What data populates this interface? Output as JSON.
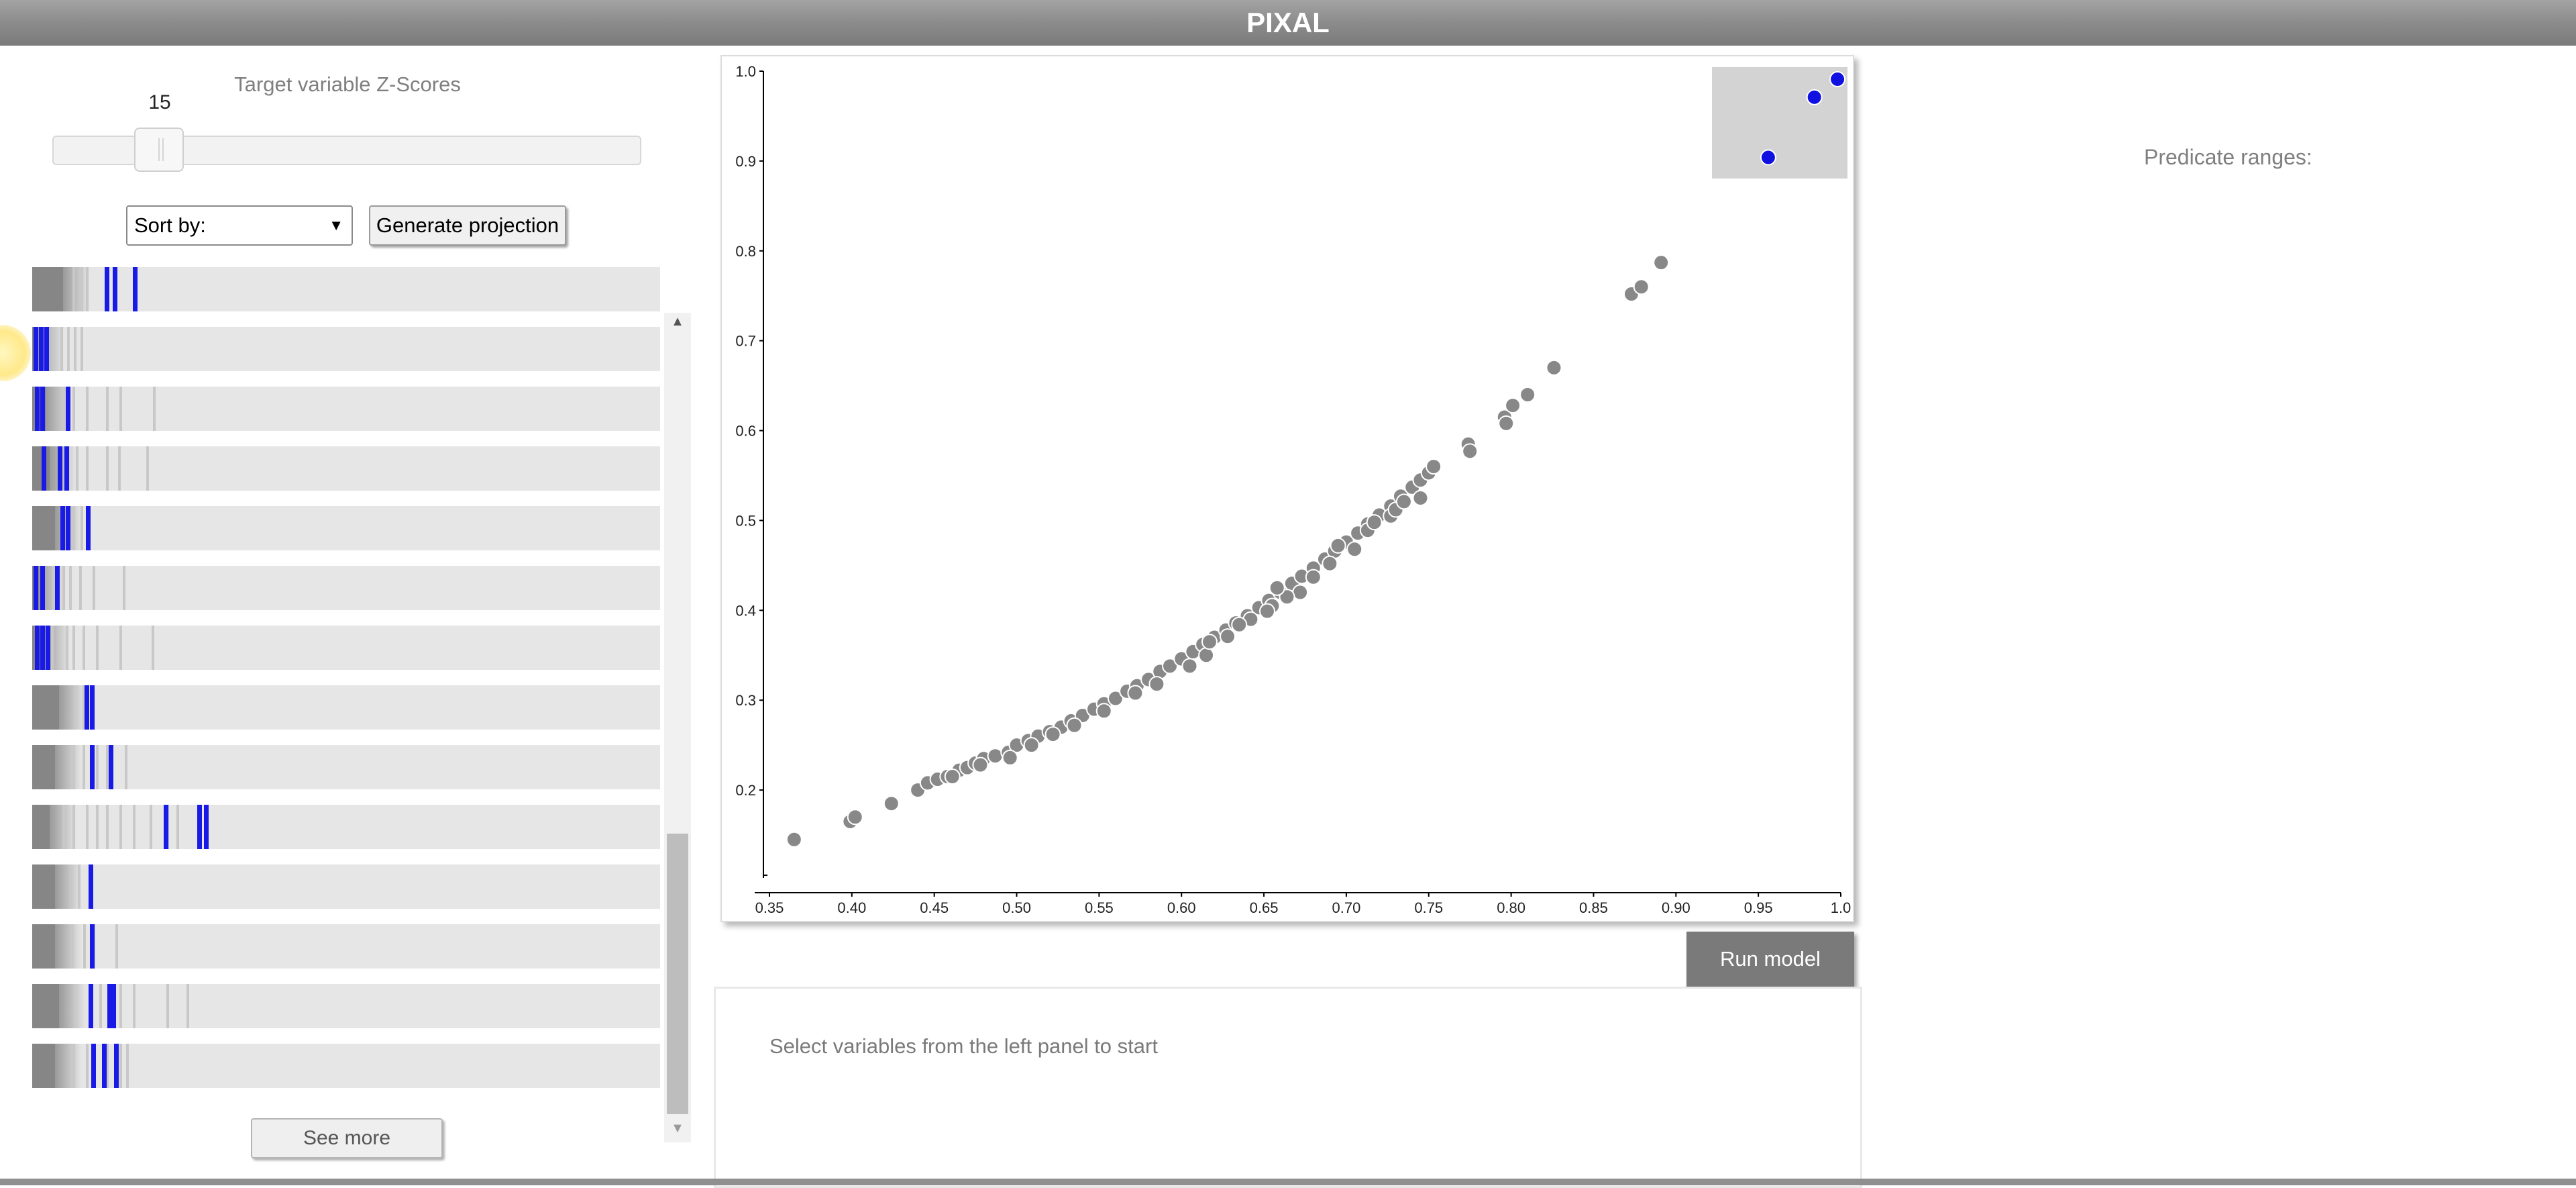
{
  "app": {
    "title": "PIXAL"
  },
  "left_panel": {
    "zscore_title": "Target variable Z-Scores",
    "slider_value": "15",
    "sort_label": "Sort by:",
    "generate_button": "Generate projection",
    "see_more_button": "See more",
    "variables": [
      {
        "gray_end": 46,
        "ticks": [
          60,
          72,
          80
        ],
        "blue": [
          108,
          120,
          150
        ]
      },
      {
        "gray_end": 8,
        "ticks": [
          30,
          42,
          52,
          62,
          72
        ],
        "blue": [
          2,
          10,
          18
        ]
      },
      {
        "gray_end": 20,
        "ticks": [
          45,
          60,
          80,
          110,
          130,
          180
        ],
        "blue": [
          4,
          12,
          50
        ]
      },
      {
        "gray_end": 26,
        "ticks": [
          50,
          65,
          80,
          110,
          128,
          170
        ],
        "blue": [
          14,
          38,
          48
        ]
      },
      {
        "gray_end": 34,
        "ticks": [
          60,
          72,
          82
        ],
        "blue": [
          42,
          50,
          80
        ]
      },
      {
        "gray_end": 10,
        "ticks": [
          30,
          45,
          55,
          70,
          90,
          135
        ],
        "blue": [
          2,
          12,
          34
        ]
      },
      {
        "gray_end": 16,
        "ticks": [
          28,
          50,
          60,
          75,
          95,
          130,
          178
        ],
        "blue": [
          4,
          12,
          20
        ]
      },
      {
        "gray_end": 40,
        "ticks": [
          62,
          75
        ],
        "blue": [
          78,
          86
        ]
      },
      {
        "gray_end": 34,
        "ticks": [
          60,
          75,
          95,
          110,
          138
        ],
        "blue": [
          86,
          114
        ]
      },
      {
        "gray_end": 26,
        "ticks": [
          45,
          60,
          80,
          95,
          110,
          130,
          150,
          175,
          200,
          215
        ],
        "blue": [
          196,
          246,
          256
        ]
      },
      {
        "gray_end": 34,
        "ticks": [
          56,
          68
        ],
        "blue": [
          84
        ]
      },
      {
        "gray_end": 34,
        "ticks": [
          58,
          76,
          90,
          124
        ],
        "blue": [
          86
        ]
      },
      {
        "gray_end": 40,
        "ticks": [
          62,
          100,
          130,
          150,
          200,
          230
        ],
        "blue": [
          84,
          112,
          118
        ]
      },
      {
        "gray_end": 34,
        "ticks": [
          60,
          80,
          110,
          130,
          140
        ],
        "blue": [
          88,
          104,
          122
        ]
      }
    ]
  },
  "chart_data": {
    "type": "scatter",
    "title": "",
    "xlabel": "",
    "ylabel": "",
    "xlim": [
      0.35,
      1.0
    ],
    "ylim": [
      0.1,
      1.0
    ],
    "x_ticks": [
      0.35,
      0.4,
      0.45,
      0.5,
      0.55,
      0.6,
      0.65,
      0.7,
      0.75,
      0.8,
      0.85,
      0.9,
      0.95,
      1.0
    ],
    "y_ticks": [
      0.2,
      0.3,
      0.4,
      0.5,
      0.6,
      0.7,
      0.8,
      0.9,
      1.0
    ],
    "x_tick_labels": [
      "0.35",
      "0.40",
      "0.45",
      "0.50",
      "0.55",
      "0.60",
      "0.65",
      "0.70",
      "0.75",
      "0.80",
      "0.85",
      "0.90",
      "0.95",
      "1.0"
    ],
    "y_tick_labels": [
      "0.2",
      "0.3",
      "0.4",
      "0.5",
      "0.6",
      "0.7",
      "0.8",
      "0.9",
      "1.0"
    ],
    "grid": false,
    "point_color": "#888888",
    "points": [
      [
        0.365,
        0.145
      ],
      [
        0.399,
        0.165
      ],
      [
        0.402,
        0.17
      ],
      [
        0.424,
        0.185
      ],
      [
        0.44,
        0.2
      ],
      [
        0.446,
        0.208
      ],
      [
        0.452,
        0.212
      ],
      [
        0.458,
        0.215
      ],
      [
        0.465,
        0.222
      ],
      [
        0.47,
        0.225
      ],
      [
        0.475,
        0.23
      ],
      [
        0.48,
        0.235
      ],
      [
        0.487,
        0.238
      ],
      [
        0.495,
        0.242
      ],
      [
        0.5,
        0.25
      ],
      [
        0.507,
        0.255
      ],
      [
        0.513,
        0.26
      ],
      [
        0.52,
        0.265
      ],
      [
        0.527,
        0.27
      ],
      [
        0.533,
        0.277
      ],
      [
        0.54,
        0.283
      ],
      [
        0.547,
        0.29
      ],
      [
        0.553,
        0.296
      ],
      [
        0.56,
        0.302
      ],
      [
        0.567,
        0.31
      ],
      [
        0.573,
        0.316
      ],
      [
        0.58,
        0.323
      ],
      [
        0.587,
        0.332
      ],
      [
        0.593,
        0.338
      ],
      [
        0.6,
        0.346
      ],
      [
        0.607,
        0.354
      ],
      [
        0.613,
        0.362
      ],
      [
        0.62,
        0.37
      ],
      [
        0.627,
        0.378
      ],
      [
        0.633,
        0.386
      ],
      [
        0.64,
        0.394
      ],
      [
        0.647,
        0.403
      ],
      [
        0.653,
        0.411
      ],
      [
        0.66,
        0.42
      ],
      [
        0.667,
        0.43
      ],
      [
        0.673,
        0.438
      ],
      [
        0.68,
        0.447
      ],
      [
        0.687,
        0.457
      ],
      [
        0.693,
        0.466
      ],
      [
        0.7,
        0.476
      ],
      [
        0.707,
        0.486
      ],
      [
        0.713,
        0.496
      ],
      [
        0.72,
        0.506
      ],
      [
        0.727,
        0.516
      ],
      [
        0.733,
        0.527
      ],
      [
        0.74,
        0.537
      ],
      [
        0.745,
        0.545
      ],
      [
        0.75,
        0.553
      ],
      [
        0.753,
        0.56
      ],
      [
        0.605,
        0.338
      ],
      [
        0.615,
        0.35
      ],
      [
        0.628,
        0.371
      ],
      [
        0.642,
        0.39
      ],
      [
        0.655,
        0.405
      ],
      [
        0.672,
        0.42
      ],
      [
        0.664,
        0.415
      ],
      [
        0.69,
        0.452
      ],
      [
        0.713,
        0.489
      ],
      [
        0.727,
        0.505
      ],
      [
        0.745,
        0.525
      ],
      [
        0.585,
        0.318
      ],
      [
        0.572,
        0.308
      ],
      [
        0.553,
        0.288
      ],
      [
        0.535,
        0.272
      ],
      [
        0.522,
        0.262
      ],
      [
        0.509,
        0.25
      ],
      [
        0.496,
        0.236
      ],
      [
        0.478,
        0.228
      ],
      [
        0.461,
        0.215
      ],
      [
        0.617,
        0.365
      ],
      [
        0.635,
        0.384
      ],
      [
        0.652,
        0.399
      ],
      [
        0.68,
        0.437
      ],
      [
        0.705,
        0.468
      ],
      [
        0.73,
        0.512
      ],
      [
        0.717,
        0.498
      ],
      [
        0.735,
        0.521
      ],
      [
        0.695,
        0.472
      ],
      [
        0.658,
        0.425
      ],
      [
        0.774,
        0.585
      ],
      [
        0.775,
        0.577
      ],
      [
        0.796,
        0.615
      ],
      [
        0.797,
        0.608
      ],
      [
        0.801,
        0.628
      ],
      [
        0.81,
        0.64
      ],
      [
        0.826,
        0.67
      ],
      [
        0.873,
        0.752
      ],
      [
        0.879,
        0.76
      ],
      [
        0.891,
        0.787
      ]
    ],
    "inset": {
      "background": "#d3d3d3",
      "point_color": "#1010e0",
      "points": [
        [
          0.956,
          0.904
        ],
        [
          0.984,
          0.971
        ],
        [
          0.998,
          0.991
        ]
      ]
    }
  },
  "run_button": "Run model",
  "model_panel": {
    "message": "Select variables from the left panel to start"
  },
  "predicate_title": "Predicate ranges:",
  "colors": {
    "blue_line": "#1a1ae6",
    "row_bg": "#e6e6e6",
    "row_gray": "#868686"
  }
}
